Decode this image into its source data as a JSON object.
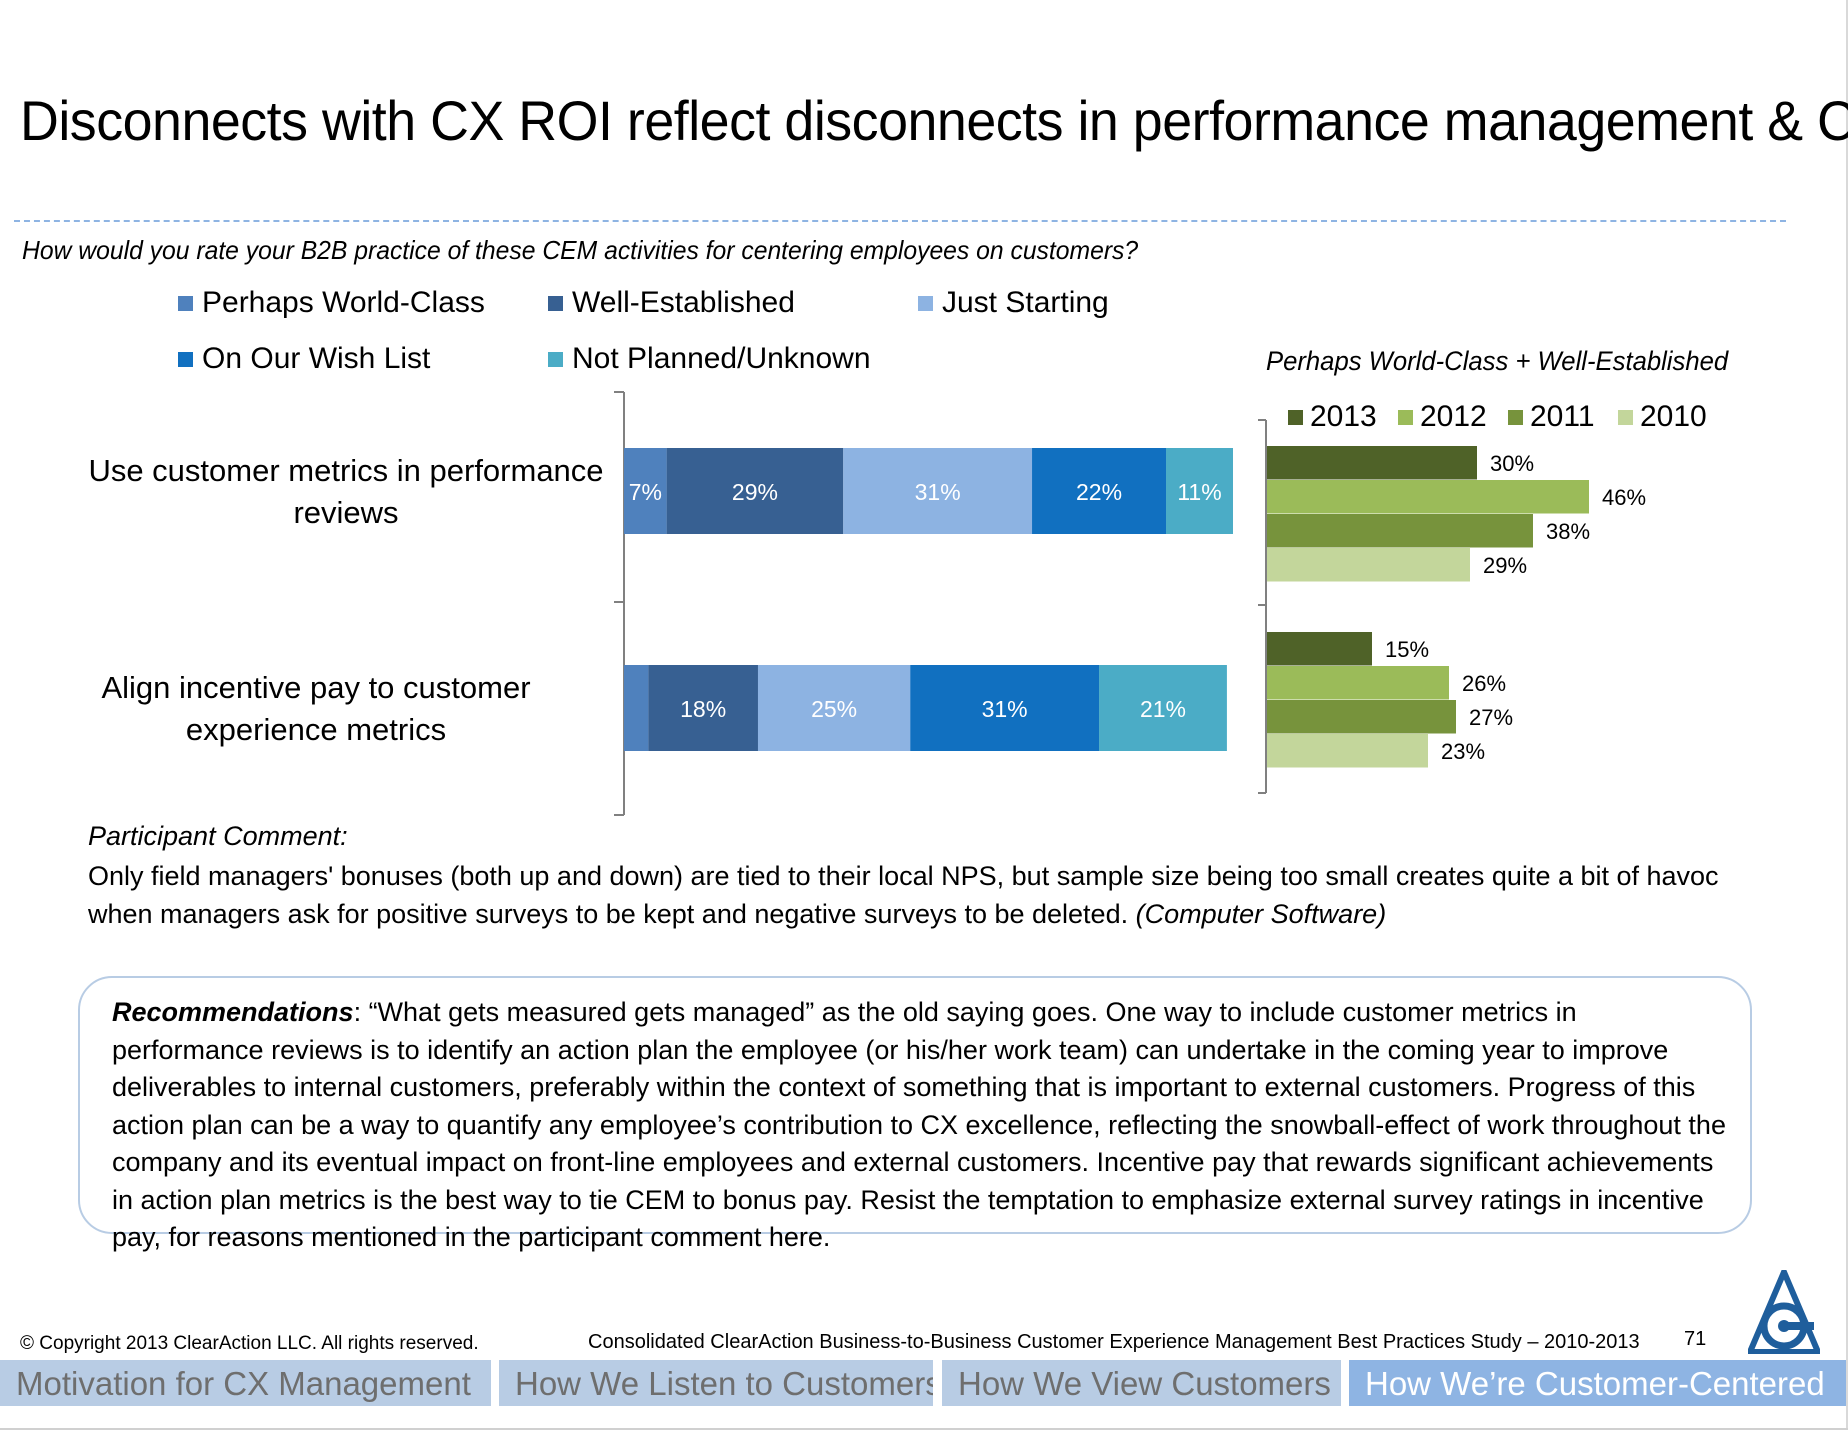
{
  "title": "Disconnects with CX ROI reflect disconnects in performance management & CX",
  "question": "How would you rate your B2B practice of these CEM activities for centering employees on customers?",
  "legend": [
    {
      "label": "Perhaps World-Class",
      "color": "#4f81bd"
    },
    {
      "label": "Well-Established",
      "color": "#376092"
    },
    {
      "label": "Just Starting",
      "color": "#8db3e2"
    },
    {
      "label": "On Our Wish List",
      "color": "#1170c0"
    },
    {
      "label": "Not Planned/Unknown",
      "color": "#4bacc6"
    }
  ],
  "right_title": "Perhaps World-Class + Well-Established",
  "year_legend": [
    {
      "label": "2013",
      "color": "#4f6228"
    },
    {
      "label": "2012",
      "color": "#9bbb59"
    },
    {
      "label": "2011",
      "color": "#77933c"
    },
    {
      "label": "2010",
      "color": "#c3d69b"
    }
  ],
  "chart_data": [
    {
      "type": "bar",
      "orientation": "horizontal",
      "stacked": true,
      "categories": [
        "Use customer metrics in performance reviews",
        "Align incentive pay to customer experience metrics"
      ],
      "series": [
        {
          "name": "Perhaps World-Class",
          "values": [
            7,
            4
          ],
          "labels": [
            "7%",
            ""
          ]
        },
        {
          "name": "Well-Established",
          "values": [
            29,
            18
          ],
          "labels": [
            "29%",
            "18%"
          ]
        },
        {
          "name": "Just Starting",
          "values": [
            31,
            25
          ],
          "labels": [
            "31%",
            "25%"
          ]
        },
        {
          "name": "On Our Wish List",
          "values": [
            22,
            31
          ],
          "labels": [
            "22%",
            "31%"
          ]
        },
        {
          "name": "Not Planned/Unknown",
          "values": [
            11,
            21
          ],
          "labels": [
            "11%",
            "21%"
          ]
        }
      ],
      "xlim": [
        0,
        100
      ]
    },
    {
      "type": "bar",
      "orientation": "horizontal",
      "title": "Perhaps World-Class + Well-Established",
      "categories": [
        "Use customer metrics in performance reviews",
        "Align incentive pay to customer experience metrics"
      ],
      "series": [
        {
          "name": "2013",
          "values": [
            30,
            15
          ]
        },
        {
          "name": "2012",
          "values": [
            46,
            26
          ]
        },
        {
          "name": "2011",
          "values": [
            38,
            27
          ]
        },
        {
          "name": "2010",
          "values": [
            29,
            23
          ]
        }
      ],
      "xlim": [
        0,
        60
      ]
    }
  ],
  "comment_label": "Participant Comment:",
  "comment": {
    "text": "Only field managers' bonuses (both up and down) are tied to their local NPS, but sample size being too small creates quite a bit of havoc when managers ask for positive surveys to be kept and negative surveys to be deleted.",
    "source": "(Computer Software)"
  },
  "recommendations": {
    "label": "Recommendations",
    "text": ": “What gets measured gets managed” as the old saying goes. One way to include customer metrics in performance reviews is to identify an action plan the employee (or his/her work team) can undertake in the coming year to improve deliverables to internal customers, preferably within the context of something that is important to external customers. Progress of this action plan can be a way to quantify any employee’s contribution to CX excellence, reflecting the snowball-effect of work throughout the company and its eventual impact on front-line employees and external customers. Incentive pay that rewards significant achievements in action plan metrics is the best way to tie CEM to bonus pay. Resist the temptation to emphasize external survey ratings in incentive pay, for reasons mentioned in the participant comment here."
  },
  "footer": {
    "copyright": "© Copyright 2013 ClearAction LLC. All rights reserved.",
    "study": "Consolidated ClearAction Business-to-Business Customer Experience Management Best Practices Study – 2010-2013",
    "page": "71"
  },
  "nav_tabs": [
    {
      "label": "Motivation for CX Management",
      "active": false
    },
    {
      "label": "How We Listen to Customers",
      "active": false
    },
    {
      "label": "How We View Customers",
      "active": false
    },
    {
      "label": "How We’re Customer-Centered",
      "active": true
    }
  ]
}
